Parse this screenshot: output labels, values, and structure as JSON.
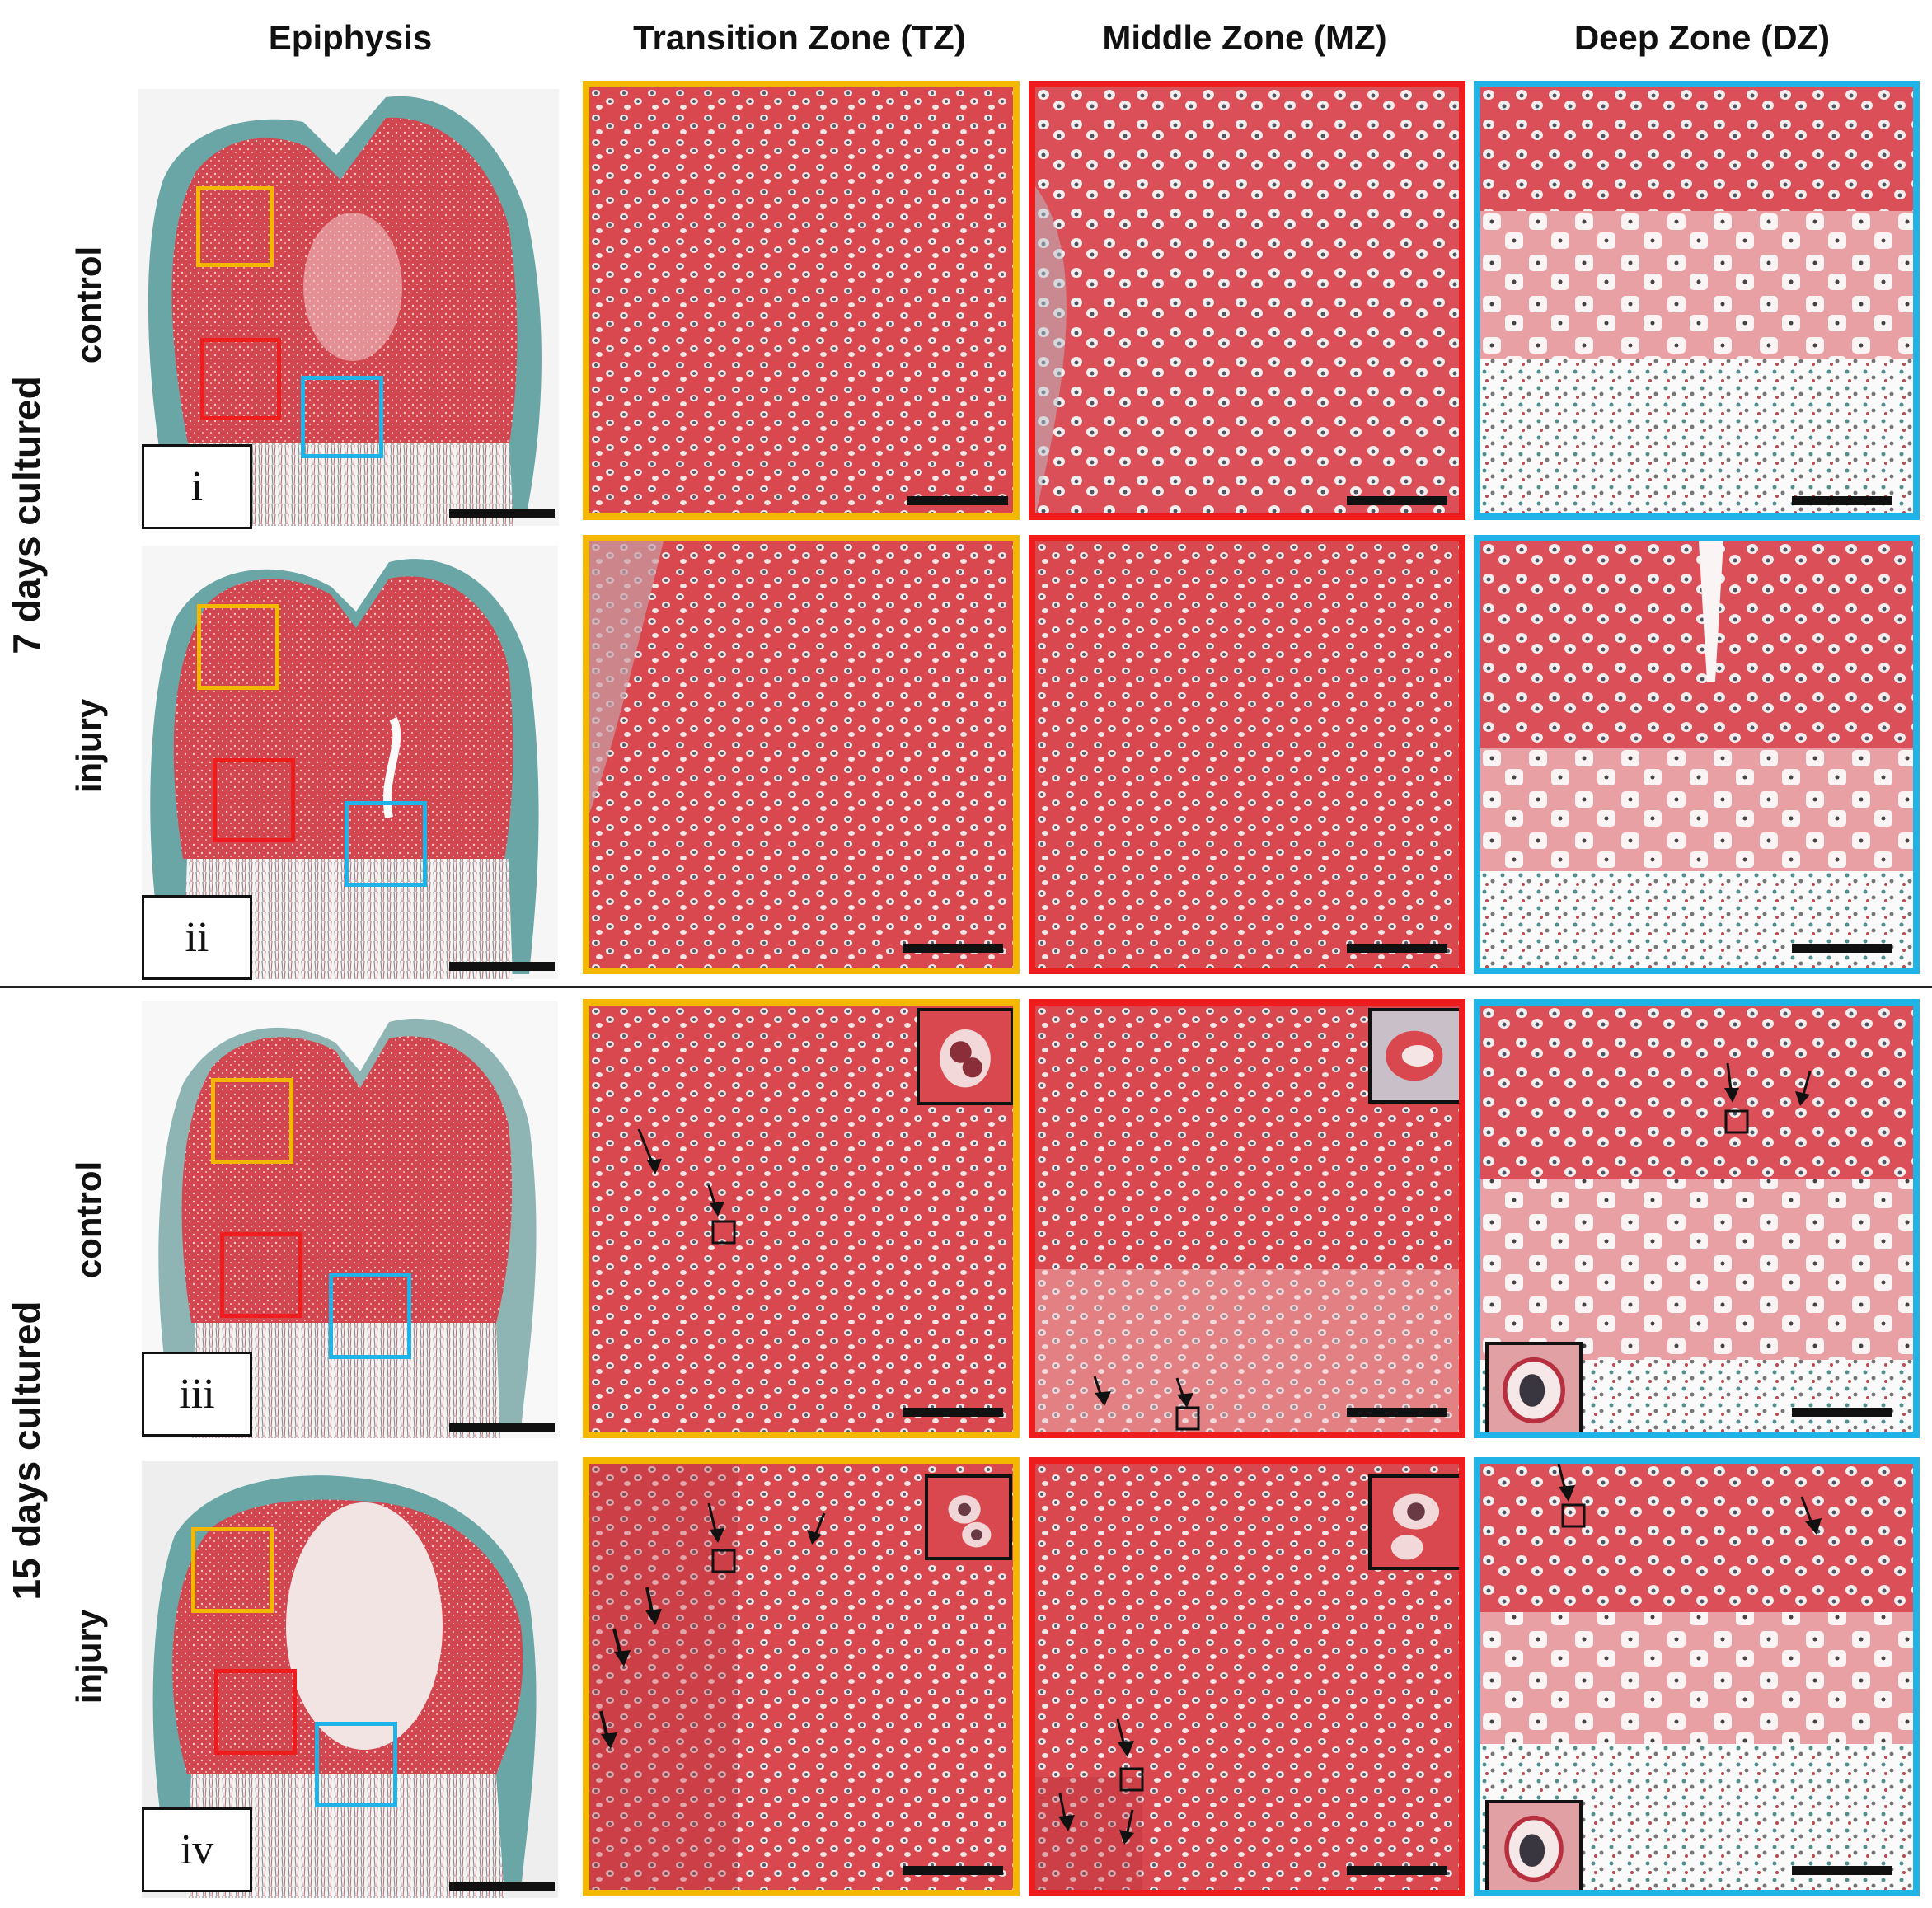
{
  "columns": {
    "epiphysis": "Epiphysis",
    "tz": "Transition Zone (TZ)",
    "mz": "Middle Zone (MZ)",
    "dz": "Deep Zone (DZ)"
  },
  "groups": {
    "group1": "7 days cultured",
    "group2": "15 days cultured"
  },
  "rows": [
    {
      "label": "control",
      "roman": "i"
    },
    {
      "label": "injury",
      "roman": "ii"
    },
    {
      "label": "control",
      "roman": "iii"
    },
    {
      "label": "injury",
      "roman": "iv"
    }
  ],
  "colors": {
    "tz_box": "#F5B800",
    "mz_box": "#EE1C1C",
    "dz_box": "#1FB3E8",
    "tissue_red": "#D8484E",
    "tissue_pale": "#F0B8B8",
    "fast_green": "#5B9C9C"
  }
}
